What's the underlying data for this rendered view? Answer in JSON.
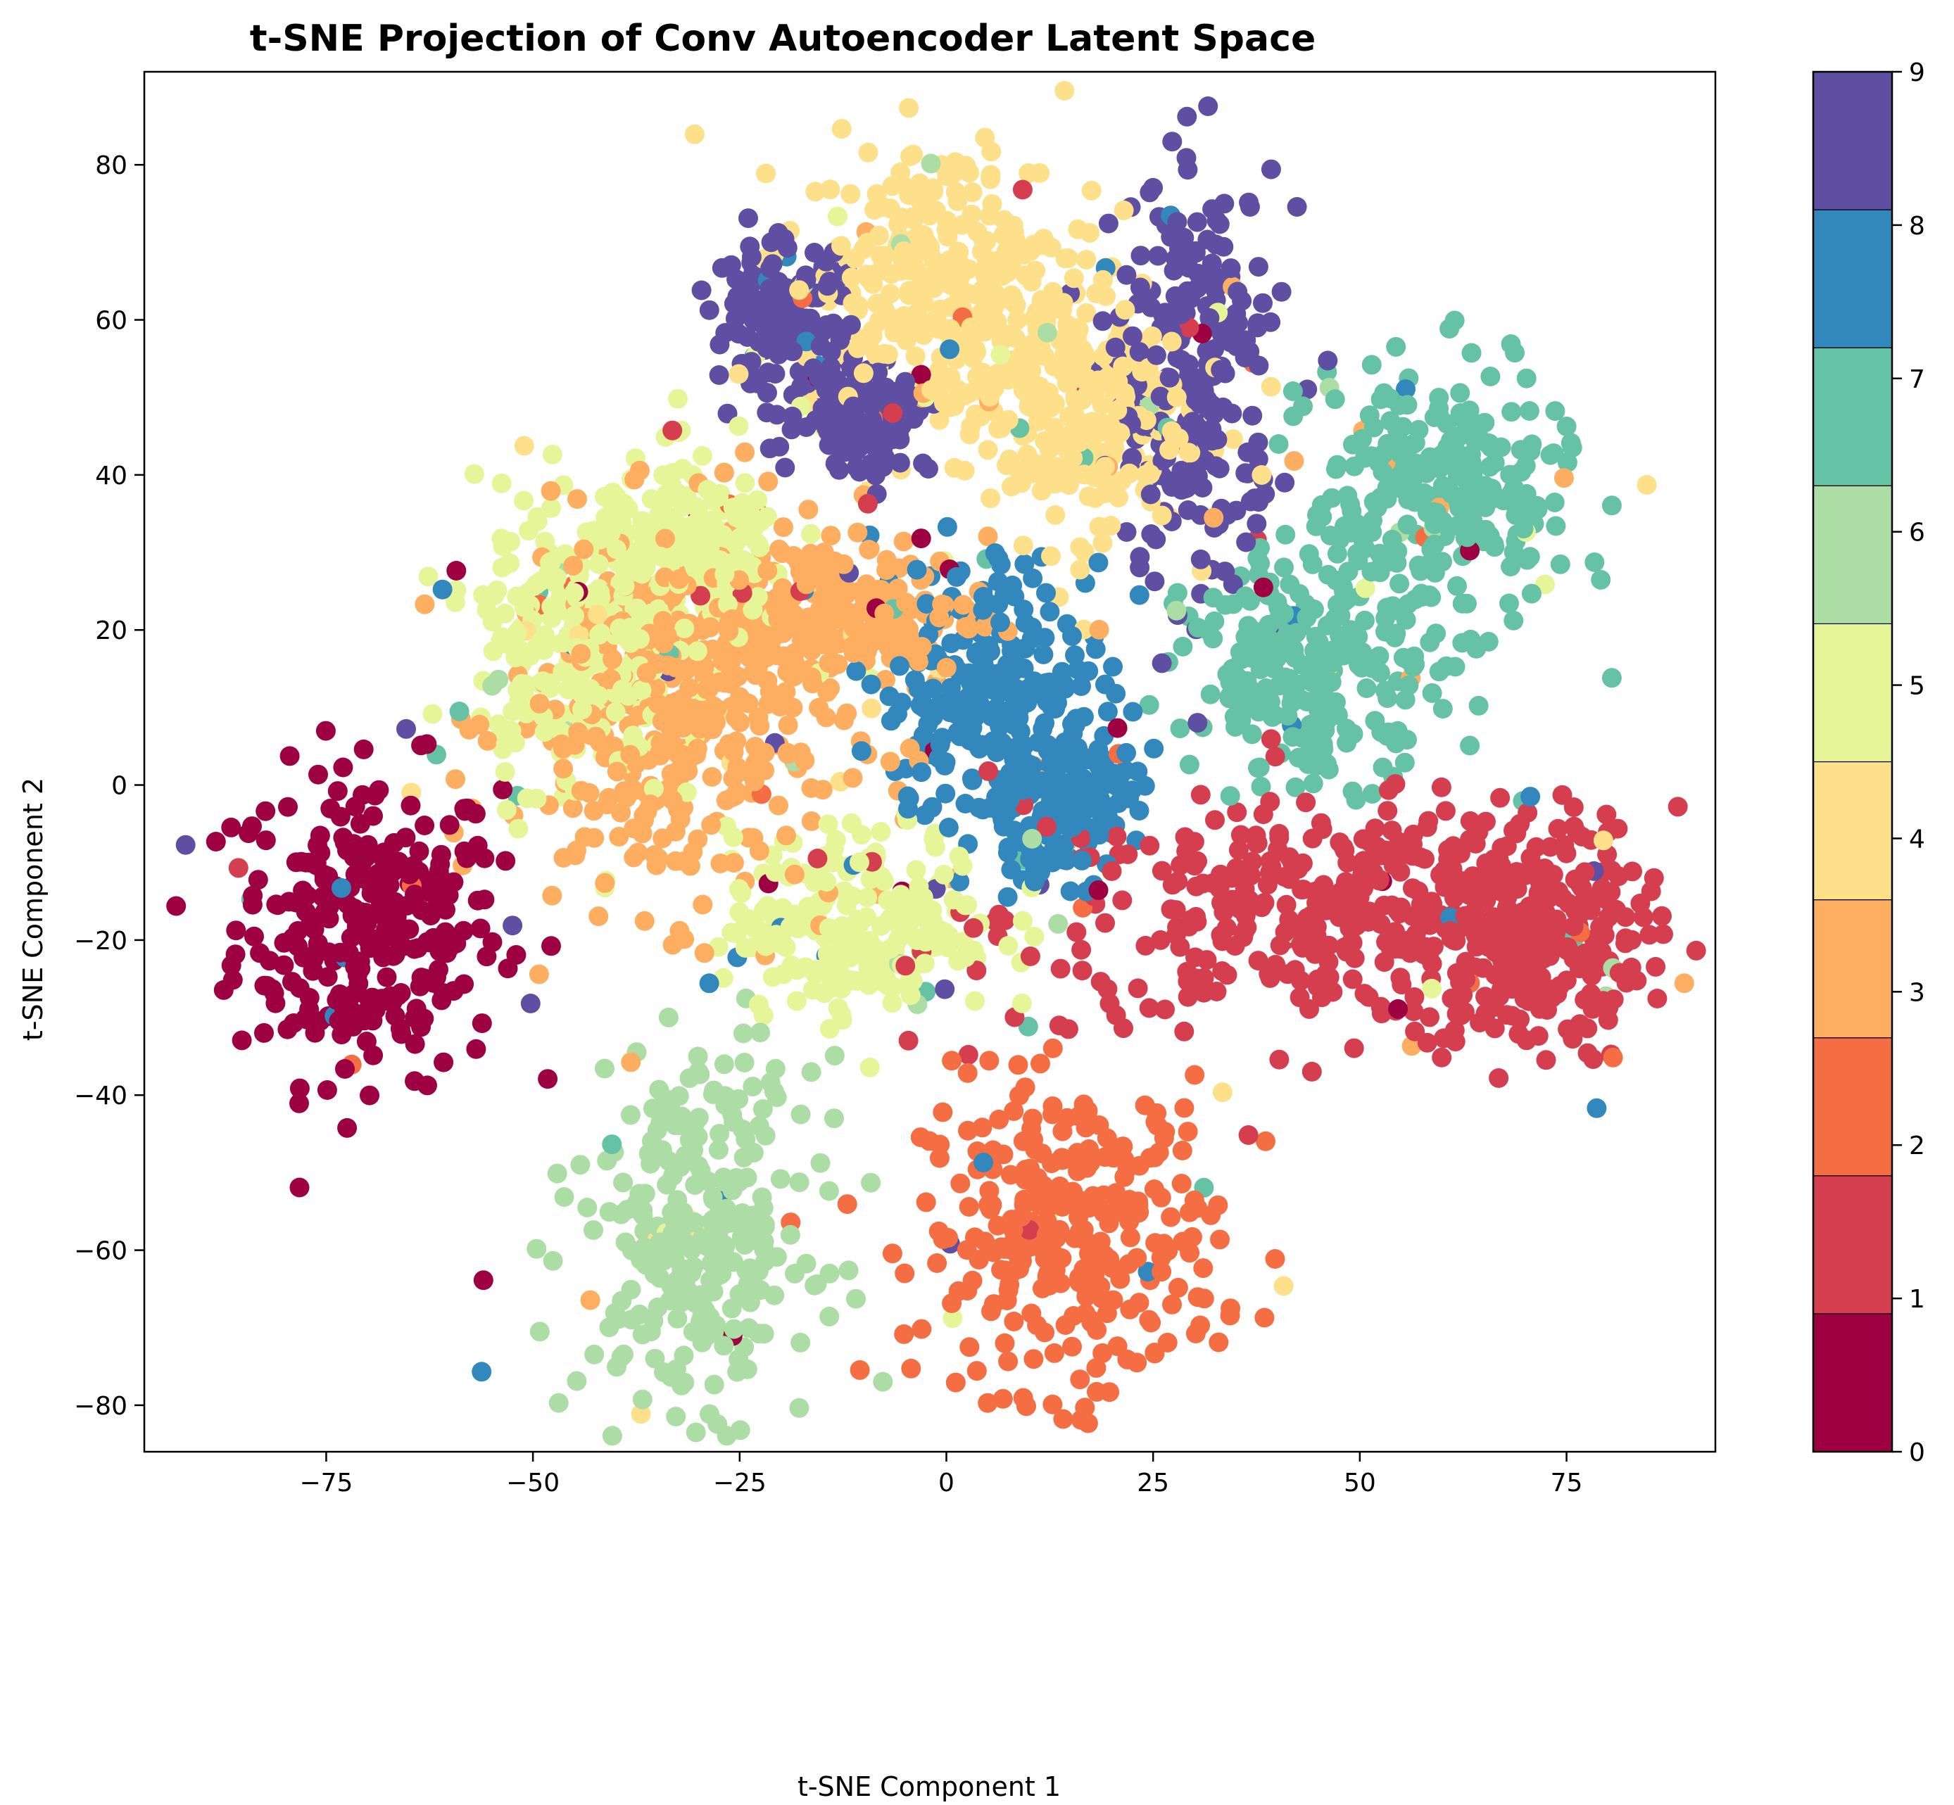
{
  "chart_data": {
    "type": "scatter",
    "title": "t-SNE Projection of Conv Autoencoder Latent Space",
    "xlabel": "t-SNE Component 1",
    "ylabel": "t-SNE Component 2",
    "xlim": [
      -97,
      93
    ],
    "ylim": [
      -86,
      92
    ],
    "x_ticks": [
      -75,
      -50,
      -25,
      0,
      25,
      50,
      75
    ],
    "y_ticks": [
      -80,
      -60,
      -40,
      -20,
      0,
      20,
      40,
      60,
      80
    ],
    "x_tick_labels": [
      "−75",
      "−50",
      "−25",
      "0",
      "25",
      "50",
      "75"
    ],
    "y_tick_labels": [
      "−80",
      "−60",
      "−40",
      "−20",
      "0",
      "20",
      "40",
      "60",
      "80"
    ],
    "grid": false,
    "colorbar": {
      "min": 0,
      "max": 9,
      "ticks": [
        0,
        1,
        2,
        3,
        4,
        5,
        6,
        7,
        8,
        9
      ],
      "tick_labels": [
        "0",
        "1",
        "2",
        "3",
        "4",
        "5",
        "6",
        "7",
        "8",
        "9"
      ],
      "colors": [
        "#9e0142",
        "#d53e4f",
        "#f46d43",
        "#fdae61",
        "#fee08b",
        "#e6f598",
        "#abdda4",
        "#66c2a5",
        "#3288bd",
        "#5e4fa2"
      ]
    },
    "clusters": [
      {
        "label": 0,
        "center": [
          -70,
          -18
        ],
        "spread": [
          8,
          10
        ]
      },
      {
        "label": 1,
        "center": [
          48,
          -17
        ],
        "spread": [
          20,
          7
        ]
      },
      {
        "label": 1,
        "center": [
          70,
          -20
        ],
        "spread": [
          7,
          8
        ]
      },
      {
        "label": 2,
        "center": [
          15,
          -58
        ],
        "spread": [
          9,
          10
        ]
      },
      {
        "label": 3,
        "center": [
          -33,
          8
        ],
        "spread": [
          10,
          12
        ]
      },
      {
        "label": 3,
        "center": [
          -15,
          22
        ],
        "spread": [
          10,
          5
        ]
      },
      {
        "label": 4,
        "center": [
          0,
          65
        ],
        "spread": [
          9,
          9
        ]
      },
      {
        "label": 4,
        "center": [
          15,
          48
        ],
        "spread": [
          7,
          8
        ]
      },
      {
        "label": 5,
        "center": [
          -10,
          -18
        ],
        "spread": [
          8,
          6
        ]
      },
      {
        "label": 5,
        "center": [
          -45,
          18
        ],
        "spread": [
          6,
          10
        ]
      },
      {
        "label": 5,
        "center": [
          -30,
          30
        ],
        "spread": [
          6,
          6
        ]
      },
      {
        "label": 6,
        "center": [
          -30,
          -58
        ],
        "spread": [
          7,
          11
        ]
      },
      {
        "label": 7,
        "center": [
          60,
          38
        ],
        "spread": [
          8,
          8
        ]
      },
      {
        "label": 7,
        "center": [
          45,
          15
        ],
        "spread": [
          8,
          7
        ]
      },
      {
        "label": 8,
        "center": [
          6,
          12
        ],
        "spread": [
          7,
          9
        ]
      },
      {
        "label": 8,
        "center": [
          13,
          -2
        ],
        "spread": [
          5,
          5
        ]
      },
      {
        "label": 9,
        "center": [
          -20,
          60
        ],
        "spread": [
          4,
          5
        ]
      },
      {
        "label": 9,
        "center": [
          -10,
          48
        ],
        "spread": [
          4,
          4
        ]
      },
      {
        "label": 9,
        "center": [
          30,
          52
        ],
        "spread": [
          5,
          13
        ]
      }
    ]
  }
}
